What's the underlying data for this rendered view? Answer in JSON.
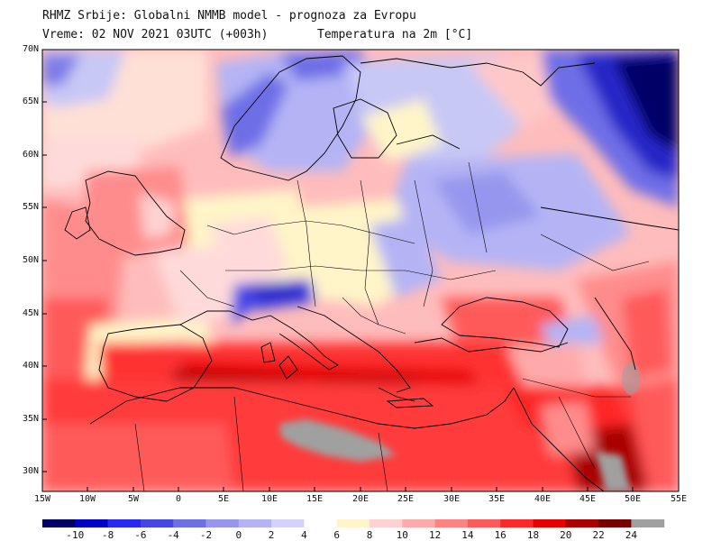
{
  "header": {
    "line1": "RHMZ Srbije: Globalni NMMB model - prognoza za Evropu",
    "line2_left": "Vreme: 02 NOV 2021 03UTC (+003h)",
    "line2_right": "Temperatura na 2m [°C]"
  },
  "lat_labels": [
    "70N",
    "65N",
    "60N",
    "55N",
    "50N",
    "45N",
    "40N",
    "35N",
    "30N"
  ],
  "lon_labels": [
    "15W",
    "10W",
    "5W",
    "0",
    "5E",
    "10E",
    "15E",
    "20E",
    "25E",
    "30E",
    "35E",
    "40E",
    "45E",
    "50E",
    "55E"
  ],
  "legend": {
    "labels": [
      "-10",
      "-8",
      "-6",
      "-4",
      "-2",
      "0",
      "2",
      "4",
      "6",
      "8",
      "10",
      "12",
      "14",
      "16",
      "18",
      "20",
      "22",
      "24"
    ],
    "colors": [
      "#000066",
      "#0000c8",
      "#2828f0",
      "#4646e6",
      "#6e6ee6",
      "#9696ee",
      "#b4b4f5",
      "#d2d2fa",
      "#ffffff",
      "#fff5c8",
      "#ffd2d2",
      "#ffaaaa",
      "#ff8282",
      "#ff5a5a",
      "#ff2828",
      "#e60000",
      "#aa0000",
      "#780000",
      "#a0a0a0"
    ]
  },
  "map_meta": {
    "variable": "2m temperature",
    "region": "Europe",
    "lon_range": [
      -15,
      55
    ],
    "lat_range": [
      28,
      70
    ]
  }
}
